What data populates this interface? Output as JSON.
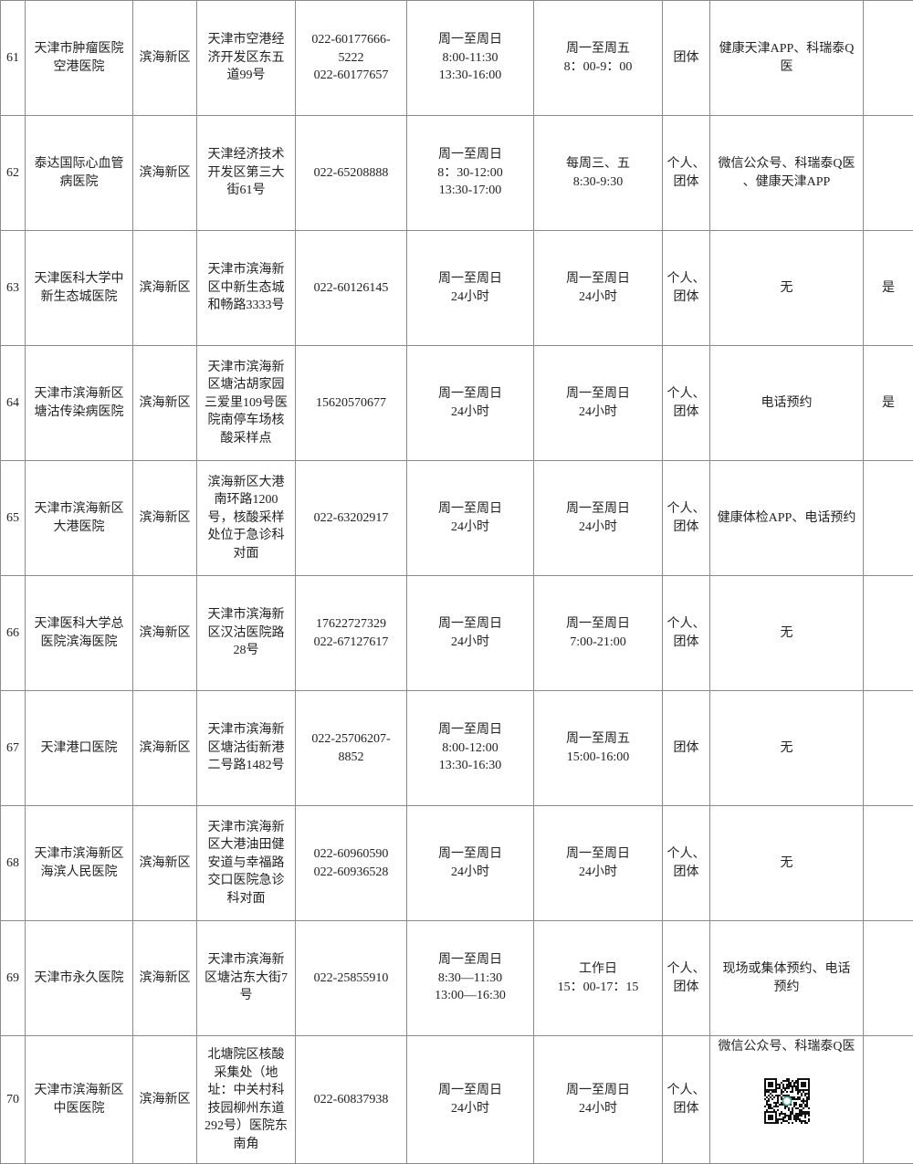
{
  "rows": [
    {
      "no": "61",
      "name": "天津市肿瘤医院\n空港医院",
      "district": "滨海新区",
      "address": "天津市空港经\n济开发区东五\n道99号",
      "phone": "022-60177666-\n5222\n022-60177657",
      "hours": "周一至周日\n8:00-11:30\n13:30-16:00",
      "service": "周一至周五\n8：00-9：00",
      "type": "团体",
      "booking": "健康天津APP、科瑞泰Q\n医",
      "extra": ""
    },
    {
      "no": "62",
      "name": "泰达国际心血管\n病医院",
      "district": "滨海新区",
      "address": "天津经济技术\n开发区第三大\n街61号",
      "phone": "022-65208888",
      "hours": "周一至周日\n8：30-12:00\n13:30-17:00",
      "service": "每周三、五\n8:30-9:30",
      "type": "个人、\n团体",
      "booking": "微信公众号、科瑞泰Q医\n、健康天津APP",
      "extra": ""
    },
    {
      "no": "63",
      "name": "天津医科大学中\n新生态城医院",
      "district": "滨海新区",
      "address": "天津市滨海新\n区中新生态城\n和畅路3333号",
      "phone": "022-60126145",
      "hours": "周一至周日\n24小时",
      "service": "周一至周日\n24小时",
      "type": "个人、\n团体",
      "booking": "无",
      "extra": "是"
    },
    {
      "no": "64",
      "name": "天津市滨海新区\n塘沽传染病医院",
      "district": "滨海新区",
      "address": "天津市滨海新\n区塘沽胡家园\n三爱里109号医\n院南停车场核\n酸采样点",
      "phone": "15620570677",
      "hours": "周一至周日\n24小时",
      "service": "周一至周日\n24小时",
      "type": "个人、\n团体",
      "booking": "电话预约",
      "extra": "是"
    },
    {
      "no": "65",
      "name": "天津市滨海新区\n大港医院",
      "district": "滨海新区",
      "address": "滨海新区大港\n南环路1200\n号，核酸采样\n处位于急诊科\n对面",
      "phone": "022-63202917",
      "hours": "周一至周日\n24小时",
      "service": "周一至周日\n24小时",
      "type": "个人、\n团体",
      "booking": "健康体检APP、电话预约",
      "extra": ""
    },
    {
      "no": "66",
      "name": "天津医科大学总\n医院滨海医院",
      "district": "滨海新区",
      "address": "天津市滨海新\n区汉沽医院路\n28号",
      "phone": "17622727329\n022-67127617",
      "hours": "周一至周日\n24小时",
      "service": "周一至周日\n7:00-21:00",
      "type": "个人、\n团体",
      "booking": "无",
      "extra": ""
    },
    {
      "no": "67",
      "name": "天津港口医院",
      "district": "滨海新区",
      "address": "天津市滨海新\n区塘沽街新港\n二号路1482号",
      "phone": "022-25706207-\n8852",
      "hours": "周一至周日\n8:00-12:00\n13:30-16:30",
      "service": "周一至周五\n15:00-16:00",
      "type": "团体",
      "booking": "无",
      "extra": ""
    },
    {
      "no": "68",
      "name": "天津市滨海新区\n海滨人民医院",
      "district": "滨海新区",
      "address": "天津市滨海新\n区大港油田健\n安道与幸福路\n交口医院急诊\n科对面",
      "phone": "022-60960590\n022-60936528",
      "hours": "周一至周日\n24小时",
      "service": "周一至周日\n24小时",
      "type": "个人、\n团体",
      "booking": "无",
      "extra": ""
    },
    {
      "no": "69",
      "name": "天津市永久医院",
      "district": "滨海新区",
      "address": "天津市滨海新\n区塘沽东大街7\n号",
      "phone": "022-25855910",
      "hours": "周一至周日\n8:30—11:30\n13:00—16:30",
      "service": "工作日\n15：00-17：15",
      "type": "个人、\n团体",
      "booking": "现场或集体预约、电话\n预约",
      "extra": ""
    },
    {
      "no": "70",
      "name": "天津市滨海新区\n中医医院",
      "district": "滨海新区",
      "address": "北塘院区核酸\n采集处（地\n址：中关村科\n技园柳州东道\n292号）医院东\n南角",
      "phone": "022-60837938",
      "hours": "周一至周日\n24小时",
      "service": "周一至周日\n24小时",
      "type": "个人、\n团体",
      "booking": "微信公众号、科瑞泰Q医",
      "extra": "",
      "qr_icon": "qr-code-icon"
    }
  ]
}
